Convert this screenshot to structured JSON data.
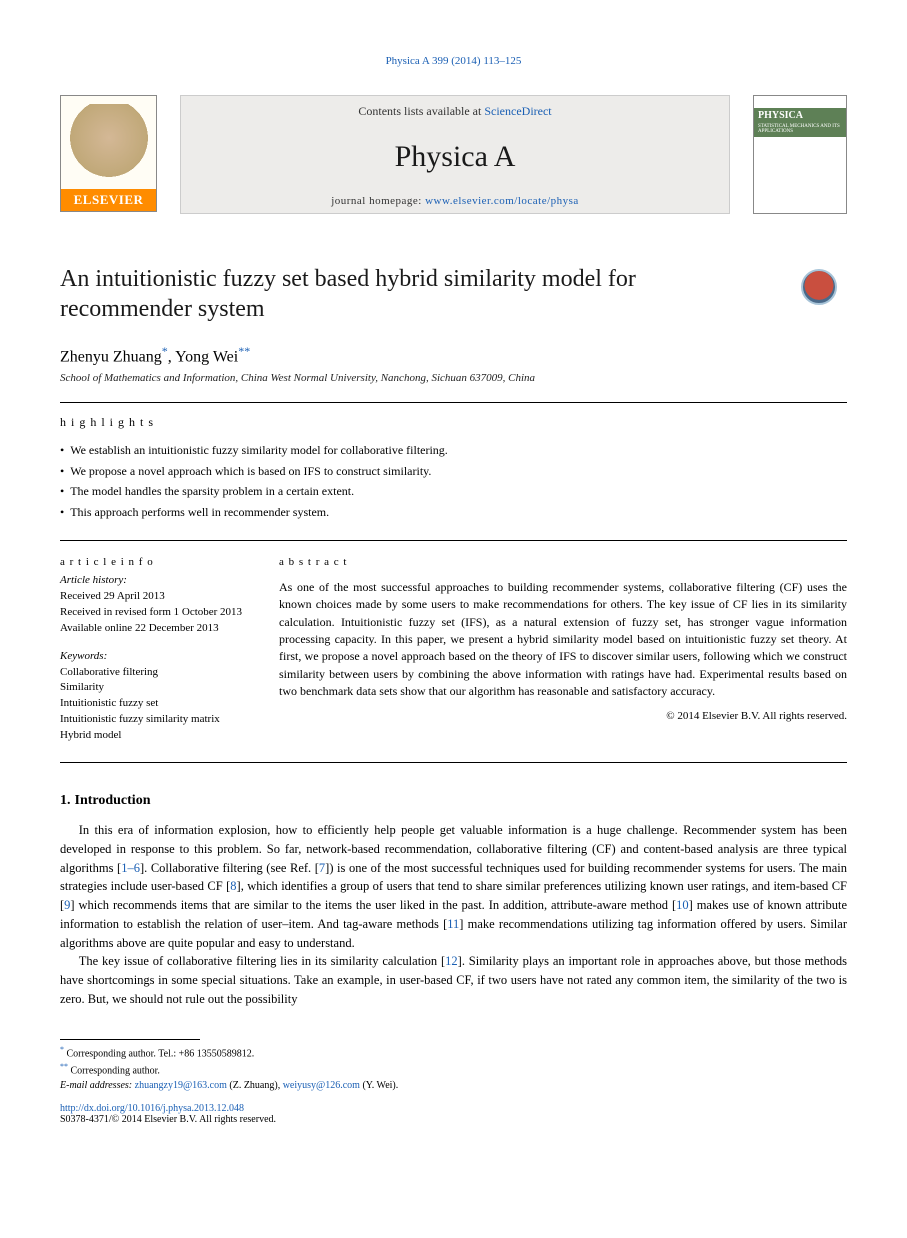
{
  "citation": "Physica A 399 (2014) 113–125",
  "header": {
    "contents_prefix": "Contents lists available at ",
    "contents_link": "ScienceDirect",
    "journal_title": "Physica A",
    "homepage_prefix": "journal homepage: ",
    "homepage_url": "www.elsevier.com/locate/physa",
    "elsevier_label": "ELSEVIER",
    "cover_brand": "PHYSICA",
    "cover_sub": "STATISTICAL MECHANICS AND ITS APPLICATIONS"
  },
  "paper": {
    "title": "An intuitionistic fuzzy set based hybrid similarity model for recommender system",
    "authors_text": "Zhenyu Zhuang",
    "author1_sup": "*",
    "authors_text2": ", Yong Wei",
    "author2_sup": "**",
    "affiliation": "School of Mathematics and Information, China West Normal University, Nanchong, Sichuan 637009, China"
  },
  "highlights": {
    "title": "h i g h l i g h t s",
    "items": [
      "We establish an intuitionistic fuzzy similarity model for collaborative filtering.",
      "We propose a novel approach which is based on IFS to construct similarity.",
      "The model handles the sparsity problem in a certain extent.",
      "This approach performs well in recommender system."
    ]
  },
  "article_info": {
    "head": "a r t i c l e    i n f o",
    "history": "Article history:",
    "received": "Received 29 April 2013",
    "revised": "Received in revised form 1 October 2013",
    "available": "Available online 22 December 2013",
    "keywords_head": "Keywords:",
    "keywords": [
      "Collaborative filtering",
      "Similarity",
      "Intuitionistic fuzzy set",
      "Intuitionistic fuzzy similarity matrix",
      "Hybrid model"
    ]
  },
  "abstract": {
    "head": "a b s t r a c t",
    "text": "As one of the most successful approaches to building recommender systems, collaborative filtering (CF) uses the known choices made by some users to make recommendations for others. The key issue of CF lies in its similarity calculation. Intuitionistic fuzzy set (IFS), as a natural extension of fuzzy set, has stronger vague information processing capacity. In this paper, we present a hybrid similarity model based on intuitionistic fuzzy set theory. At first, we propose a novel approach based on the theory of IFS to discover similar users, following which we construct similarity between users by combining the above information with ratings have had. Experimental results based on two benchmark data sets show that our algorithm has reasonable and satisfactory accuracy.",
    "copyright": "© 2014 Elsevier B.V. All rights reserved."
  },
  "section": {
    "num": "1.",
    "title": "Introduction",
    "para1_before": "In this era of information explosion, how to efficiently help people get valuable information is a huge challenge. Recommender system has been developed in response to this problem. So far, network-based recommendation, collaborative filtering (CF) and content-based analysis are three typical algorithms [",
    "ref1": "1–6",
    "para1_mid1": "]. Collaborative filtering (see Ref. [",
    "ref2": "7",
    "para1_mid2": "]) is one of the most successful techniques used for building recommender systems for users. The main strategies include user-based CF [",
    "ref3": "8",
    "para1_mid3": "], which identifies a group of users that tend to share similar preferences utilizing known user ratings, and item-based CF [",
    "ref4": "9",
    "para1_mid4": "] which recommends items that are similar to the items the user liked in the past. In addition, attribute-aware method [",
    "ref5": "10",
    "para1_mid5": "] makes use of known attribute information to establish the relation of user–item. And tag-aware methods [",
    "ref6": "11",
    "para1_mid6": "] make recommendations utilizing tag information offered by users. Similar algorithms above are quite popular and easy to understand.",
    "para2_before": "The key issue of collaborative filtering lies in its similarity calculation [",
    "ref7": "12",
    "para2_after": "]. Similarity plays an important role in approaches above, but those methods have shortcomings in some special situations. Take an example, in user-based CF, if two users have not rated any common item, the similarity of the two is zero. But, we should not rule out the possibility"
  },
  "footnotes": {
    "star1": "*",
    "star2": "**",
    "corr1": " Corresponding author. Tel.: +86 13550589812.",
    "corr2": " Corresponding author.",
    "emails_prefix": "E-mail addresses: ",
    "email1": "zhuangzy19@163.com",
    "email1_name": " (Z. Zhuang), ",
    "email2": "weiyusy@126.com",
    "email2_name": " (Y. Wei)."
  },
  "doi": {
    "url": "http://dx.doi.org/10.1016/j.physa.2013.12.048",
    "line2": "S0378-4371/© 2014 Elsevier B.V. All rights reserved."
  }
}
